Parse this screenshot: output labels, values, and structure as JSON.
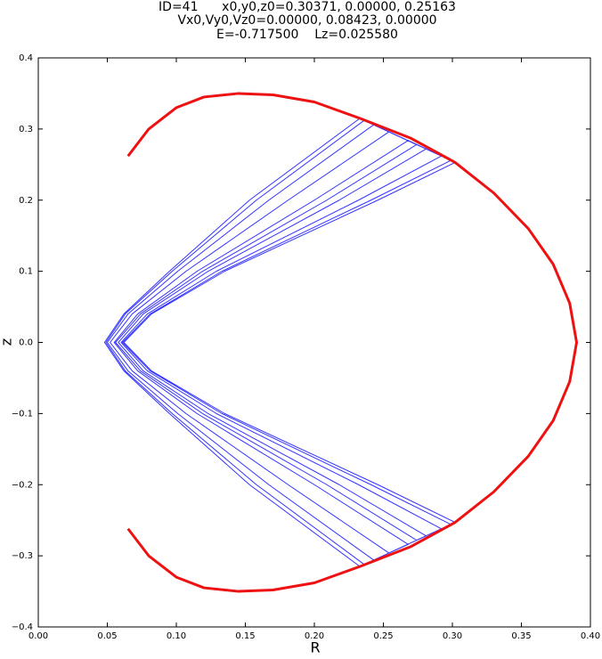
{
  "chart_data": {
    "type": "line",
    "title": [
      "ID=41      x0,y0,z0=0.30371, 0.00000, 0.25163",
      "Vx0,Vy0,Vz0=0.00000, 0.08423, 0.00000",
      "E=-0.717500    Lz=0.025580"
    ],
    "x_label": "R",
    "y_label": "z",
    "xlim": [
      0,
      0.4
    ],
    "ylim": [
      -0.4,
      0.4
    ],
    "xticks": [
      {
        "value": 0,
        "label": "0.00"
      },
      {
        "value": 0.05,
        "label": "0.05"
      },
      {
        "value": 0.1,
        "label": "0.10"
      },
      {
        "value": 0.15,
        "label": "0.15"
      },
      {
        "value": 0.2,
        "label": "0.20"
      },
      {
        "value": 0.25,
        "label": "0.25"
      },
      {
        "value": 0.3,
        "label": "0.30"
      },
      {
        "value": 0.35,
        "label": "0.35"
      },
      {
        "value": 0.4,
        "label": "0.40"
      }
    ],
    "yticks": [
      {
        "value": -0.4,
        "label": "−0.4"
      },
      {
        "value": -0.3,
        "label": "−0.3"
      },
      {
        "value": -0.2,
        "label": "−0.2"
      },
      {
        "value": -0.1,
        "label": "−0.1"
      },
      {
        "value": 0,
        "label": "0.0"
      },
      0.1,
      0.2,
      0.3,
      0.4
    ],
    "series": [
      {
        "color": "#0000ff",
        "x": [
          0.233,
          0.153,
          0.095,
          0.062,
          0.048,
          0.062,
          0.095,
          0.153,
          0.233,
          0.302,
          0.246,
          0.135,
          0.082,
          0.062,
          0.082,
          0.135,
          0.246,
          0.302,
          0.254,
          0.181,
          0.107,
          0.068,
          0.052,
          0.068,
          0.107,
          0.181,
          0.254,
          0.281,
          0.218,
          0.123,
          0.076,
          0.058,
          0.076,
          0.123,
          0.218,
          0.281,
          0.243,
          0.167,
          0.101,
          0.065,
          0.05,
          0.065,
          0.101,
          0.167,
          0.243,
          0.292,
          0.232,
          0.129,
          0.079,
          0.06,
          0.079,
          0.129,
          0.232,
          0.292,
          0.268,
          0.2,
          0.115,
          0.072,
          0.055,
          0.072,
          0.115,
          0.2,
          0.268,
          0.236,
          0.158,
          0.097,
          0.063,
          0.049,
          0.063,
          0.097,
          0.158,
          0.236,
          0.274,
          0.209,
          0.119,
          0.074,
          0.056,
          0.074,
          0.119,
          0.209,
          0.274,
          0.299,
          0.241,
          0.133,
          0.081,
          0.061,
          0.081,
          0.133,
          0.241,
          0.299
        ],
        "values": [
          0.315,
          0.2,
          0.1,
          0.04,
          0,
          -0.04,
          -0.1,
          -0.2,
          -0.315,
          -0.253,
          -0.2,
          -0.1,
          -0.04,
          0,
          0.04,
          0.1,
          0.2,
          0.253,
          0.296,
          0.2,
          0.1,
          0.04,
          0,
          -0.04,
          -0.1,
          -0.2,
          -0.296,
          -0.272,
          -0.2,
          -0.1,
          -0.04,
          0,
          0.04,
          0.1,
          0.2,
          0.272,
          0.306,
          0.2,
          0.1,
          0.04,
          0,
          -0.04,
          -0.1,
          -0.2,
          -0.306,
          -0.262,
          -0.2,
          -0.1,
          -0.04,
          0,
          0.04,
          0.1,
          0.2,
          0.262,
          0.284,
          0.2,
          0.1,
          0.04,
          0,
          -0.04,
          -0.1,
          -0.2,
          -0.284,
          -0.312,
          -0.2,
          -0.1,
          -0.04,
          0,
          0.04,
          0.1,
          0.2,
          0.312,
          0.278,
          0.2,
          0.1,
          0.04,
          0,
          -0.04,
          -0.1,
          -0.2,
          -0.278,
          -0.256,
          -0.2,
          -0.1,
          -0.04,
          0,
          0.04,
          0.1,
          0.2,
          0.256
        ]
      },
      {
        "color": "#ee1111",
        "x": [
          0.065,
          0.08,
          0.1,
          0.12,
          0.145,
          0.17,
          0.2,
          0.233,
          0.27,
          0.302,
          0.33,
          0.355,
          0.373,
          0.385,
          0.39,
          0.385,
          0.373,
          0.355,
          0.33,
          0.302,
          0.27,
          0.233,
          0.2,
          0.17,
          0.145,
          0.12,
          0.1,
          0.08,
          0.065
        ],
        "values": [
          0.262,
          0.3,
          0.33,
          0.345,
          0.35,
          0.348,
          0.338,
          0.315,
          0.287,
          0.253,
          0.21,
          0.16,
          0.11,
          0.055,
          0,
          -0.055,
          -0.11,
          -0.16,
          -0.21,
          -0.253,
          -0.287,
          -0.315,
          -0.338,
          -0.348,
          -0.35,
          -0.345,
          -0.33,
          -0.3,
          -0.262
        ]
      }
    ]
  }
}
